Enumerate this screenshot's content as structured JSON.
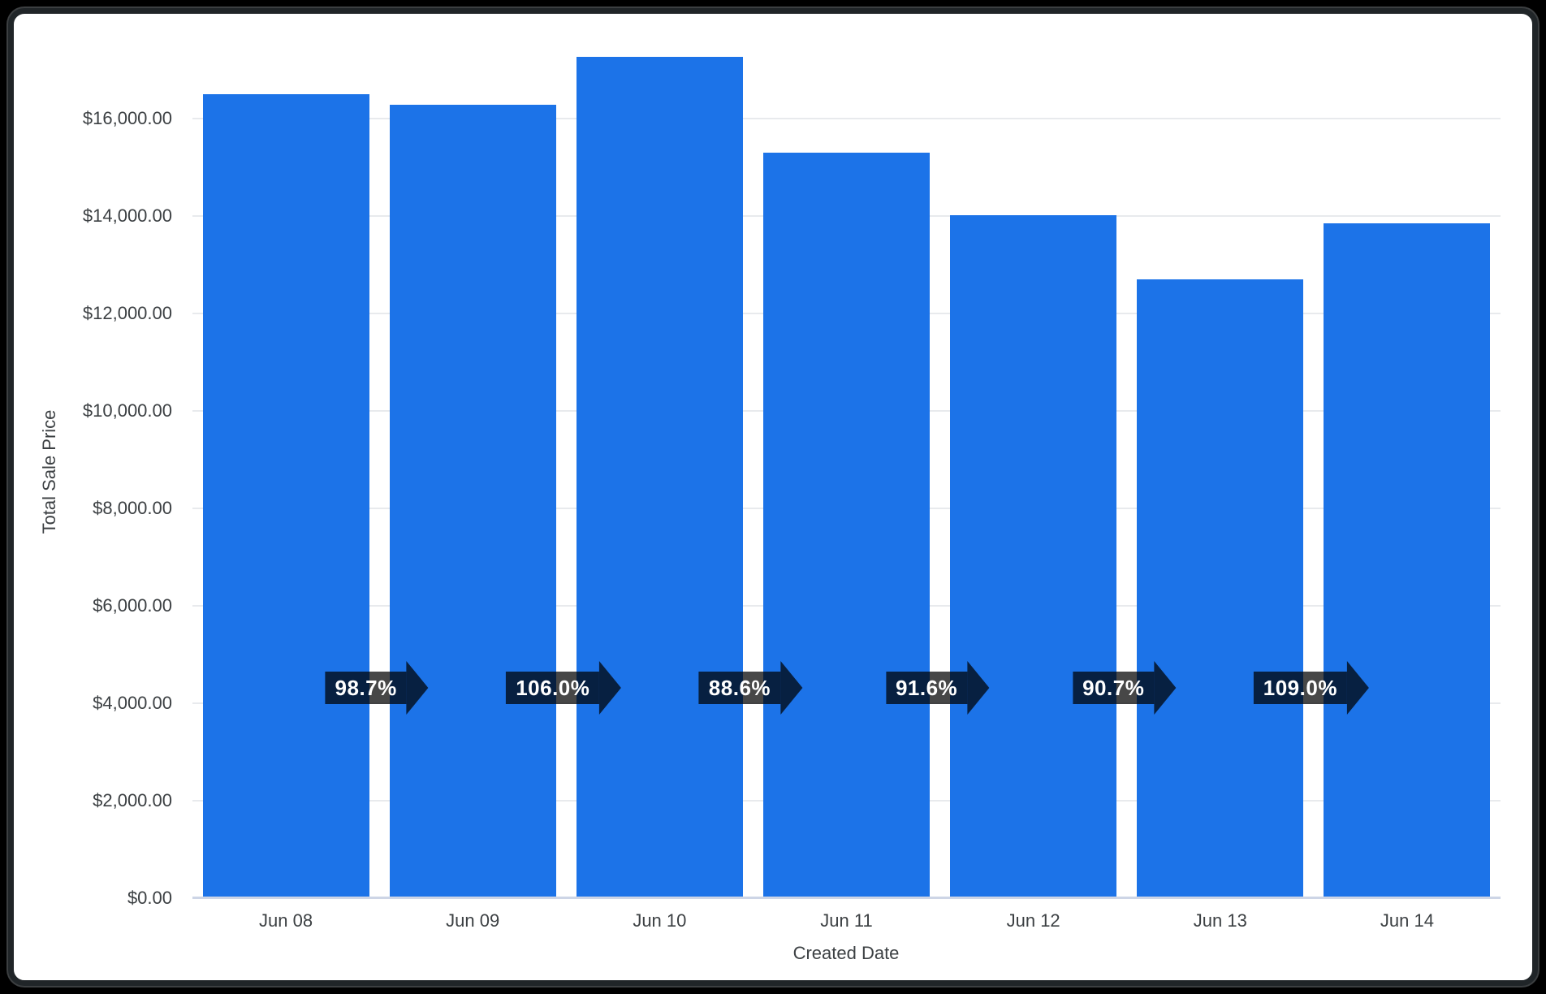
{
  "chart_data": {
    "type": "bar",
    "title": "",
    "xlabel": "Created Date",
    "ylabel": "Total Sale Price",
    "categories": [
      "Jun 08",
      "Jun 09",
      "Jun 10",
      "Jun 11",
      "Jun 12",
      "Jun 13",
      "Jun 14"
    ],
    "values": [
      16500,
      16286,
      17263,
      15295,
      14010,
      12707,
      13851
    ],
    "ylim": [
      0,
      17500
    ],
    "y_tick_step": 2000,
    "y_tick_labels": [
      "$0.00",
      "$2,000.00",
      "$4,000.00",
      "$6,000.00",
      "$8,000.00",
      "$10,000.00",
      "$12,000.00",
      "$14,000.00",
      "$16,000.00"
    ],
    "grid": true,
    "legend": false,
    "annotations": [
      {
        "type": "arrow-right",
        "between": [
          "Jun 08",
          "Jun 09"
        ],
        "label": "98.7%"
      },
      {
        "type": "arrow-right",
        "between": [
          "Jun 09",
          "Jun 10"
        ],
        "label": "106.0%"
      },
      {
        "type": "arrow-right",
        "between": [
          "Jun 10",
          "Jun 11"
        ],
        "label": "88.6%"
      },
      {
        "type": "arrow-right",
        "between": [
          "Jun 11",
          "Jun 12"
        ],
        "label": "91.6%"
      },
      {
        "type": "arrow-right",
        "between": [
          "Jun 12",
          "Jun 13"
        ],
        "label": "90.7%"
      },
      {
        "type": "arrow-right",
        "between": [
          "Jun 13",
          "Jun 14"
        ],
        "label": "109.0%"
      }
    ]
  },
  "colors": {
    "bar": "#1C73E8",
    "gridline": "#E8EAED",
    "baseline": "#CDD5E6",
    "text": "#3C4043",
    "badge_bg": "rgba(0,0,0,0.72)",
    "badge_text": "#FFFFFF"
  }
}
